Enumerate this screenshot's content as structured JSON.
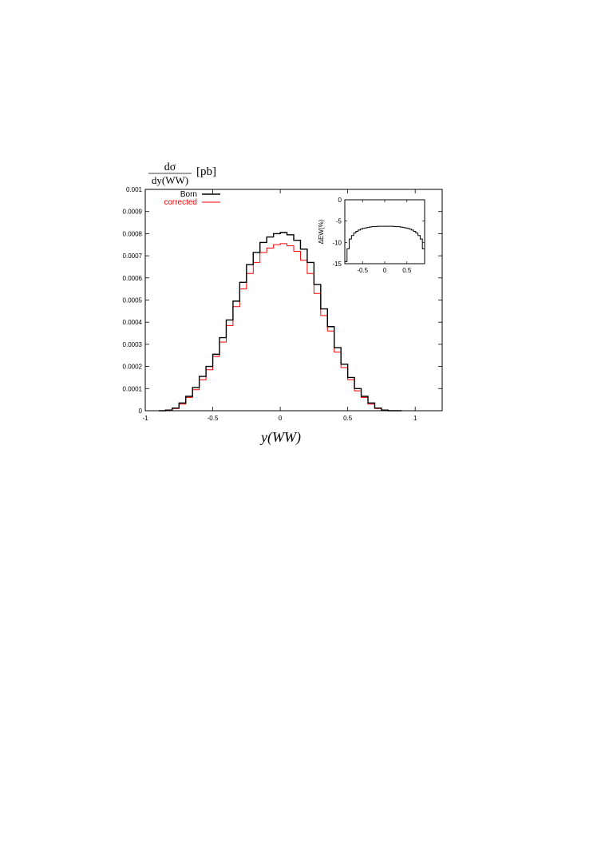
{
  "chart_data": [
    {
      "type": "line",
      "step": true,
      "ylabel_num": "dσ",
      "ylabel_den": "dy(WW)",
      "ylabel_unit": "[pb]",
      "xlabel": "y(WW)",
      "xlim": [
        -1,
        1.2
      ],
      "ylim": [
        0,
        0.001
      ],
      "xticks": [
        "-1",
        "-0.5",
        "0",
        "0.5",
        "1"
      ],
      "yticks": [
        "0",
        "0.0001",
        "0.0002",
        "0.0003",
        "0.0004",
        "0.0005",
        "0.0006",
        "0.0007",
        "0.0008",
        "0.0009",
        "0.001"
      ],
      "grid": false,
      "legend_position": "top-left",
      "bin_width": 0.05,
      "x": [
        -0.9,
        -0.85,
        -0.8,
        -0.75,
        -0.7,
        -0.65,
        -0.6,
        -0.55,
        -0.5,
        -0.45,
        -0.4,
        -0.35,
        -0.3,
        -0.25,
        -0.2,
        -0.15,
        -0.1,
        -0.05,
        0,
        0.05,
        0.1,
        0.15,
        0.2,
        0.25,
        0.3,
        0.35,
        0.4,
        0.45,
        0.5,
        0.55,
        0.6,
        0.65,
        0.7,
        0.75,
        0.8,
        0.85
      ],
      "series": [
        {
          "name": "Born",
          "color": "#000000",
          "values": [
            0.0,
            3e-06,
            1.2e-05,
            3.5e-05,
            6.5e-05,
            0.000105,
            0.000155,
            0.0002,
            0.000255,
            0.00033,
            0.00041,
            0.000495,
            0.00058,
            0.00066,
            0.000715,
            0.00076,
            0.000785,
            0.0008,
            0.000805,
            0.000795,
            0.00077,
            0.00073,
            0.00067,
            0.00057,
            0.00046,
            0.00038,
            0.000285,
            0.00021,
            0.00015,
            0.0001,
            6.5e-05,
            3.5e-05,
            1.2e-05,
            3e-06,
            0.0,
            0.0
          ]
        },
        {
          "name": "corrected",
          "color": "#ff0000",
          "values": [
            0.0,
            2e-06,
            1e-05,
            3e-05,
            6e-05,
            9.5e-05,
            0.00014,
            0.000185,
            0.000245,
            0.00031,
            0.000385,
            0.00047,
            0.00055,
            0.00062,
            0.00067,
            0.000715,
            0.000735,
            0.00075,
            0.000755,
            0.000745,
            0.00072,
            0.00068,
            0.00062,
            0.00053,
            0.00043,
            0.00036,
            0.000265,
            0.000195,
            0.00014,
            9e-05,
            6e-05,
            3e-05,
            1e-05,
            3e-06,
            0.0,
            0.0
          ]
        }
      ]
    },
    {
      "type": "line",
      "step": true,
      "inset": true,
      "ylabel": "ΔEW(%)",
      "xlim": [
        -0.9,
        0.9
      ],
      "ylim": [
        -15,
        0
      ],
      "xticks": [
        "-0.5",
        "0",
        "0.5"
      ],
      "yticks": [
        "0",
        "-5",
        "-10",
        "-15"
      ],
      "grid": false,
      "bin_width": 0.05,
      "x": [
        -0.9,
        -0.85,
        -0.8,
        -0.75,
        -0.7,
        -0.65,
        -0.6,
        -0.55,
        -0.5,
        -0.45,
        -0.4,
        -0.35,
        -0.3,
        -0.25,
        -0.2,
        -0.15,
        -0.1,
        -0.05,
        0,
        0.05,
        0.1,
        0.15,
        0.2,
        0.25,
        0.3,
        0.35,
        0.4,
        0.45,
        0.5,
        0.55,
        0.6,
        0.65,
        0.7,
        0.75,
        0.8,
        0.85
      ],
      "series": [
        {
          "color": "#000000",
          "values": [
            -14.5,
            -11.5,
            -9.2,
            -8.4,
            -7.8,
            -7.4,
            -7.1,
            -6.9,
            -6.7,
            -6.6,
            -6.5,
            -6.4,
            -6.3,
            -6.3,
            -6.25,
            -6.2,
            -6.2,
            -6.2,
            -6.2,
            -6.2,
            -6.2,
            -6.2,
            -6.25,
            -6.3,
            -6.3,
            -6.4,
            -6.5,
            -6.6,
            -6.7,
            -6.9,
            -7.1,
            -7.4,
            -7.8,
            -8.4,
            -9.2,
            -11.5
          ]
        }
      ]
    }
  ]
}
